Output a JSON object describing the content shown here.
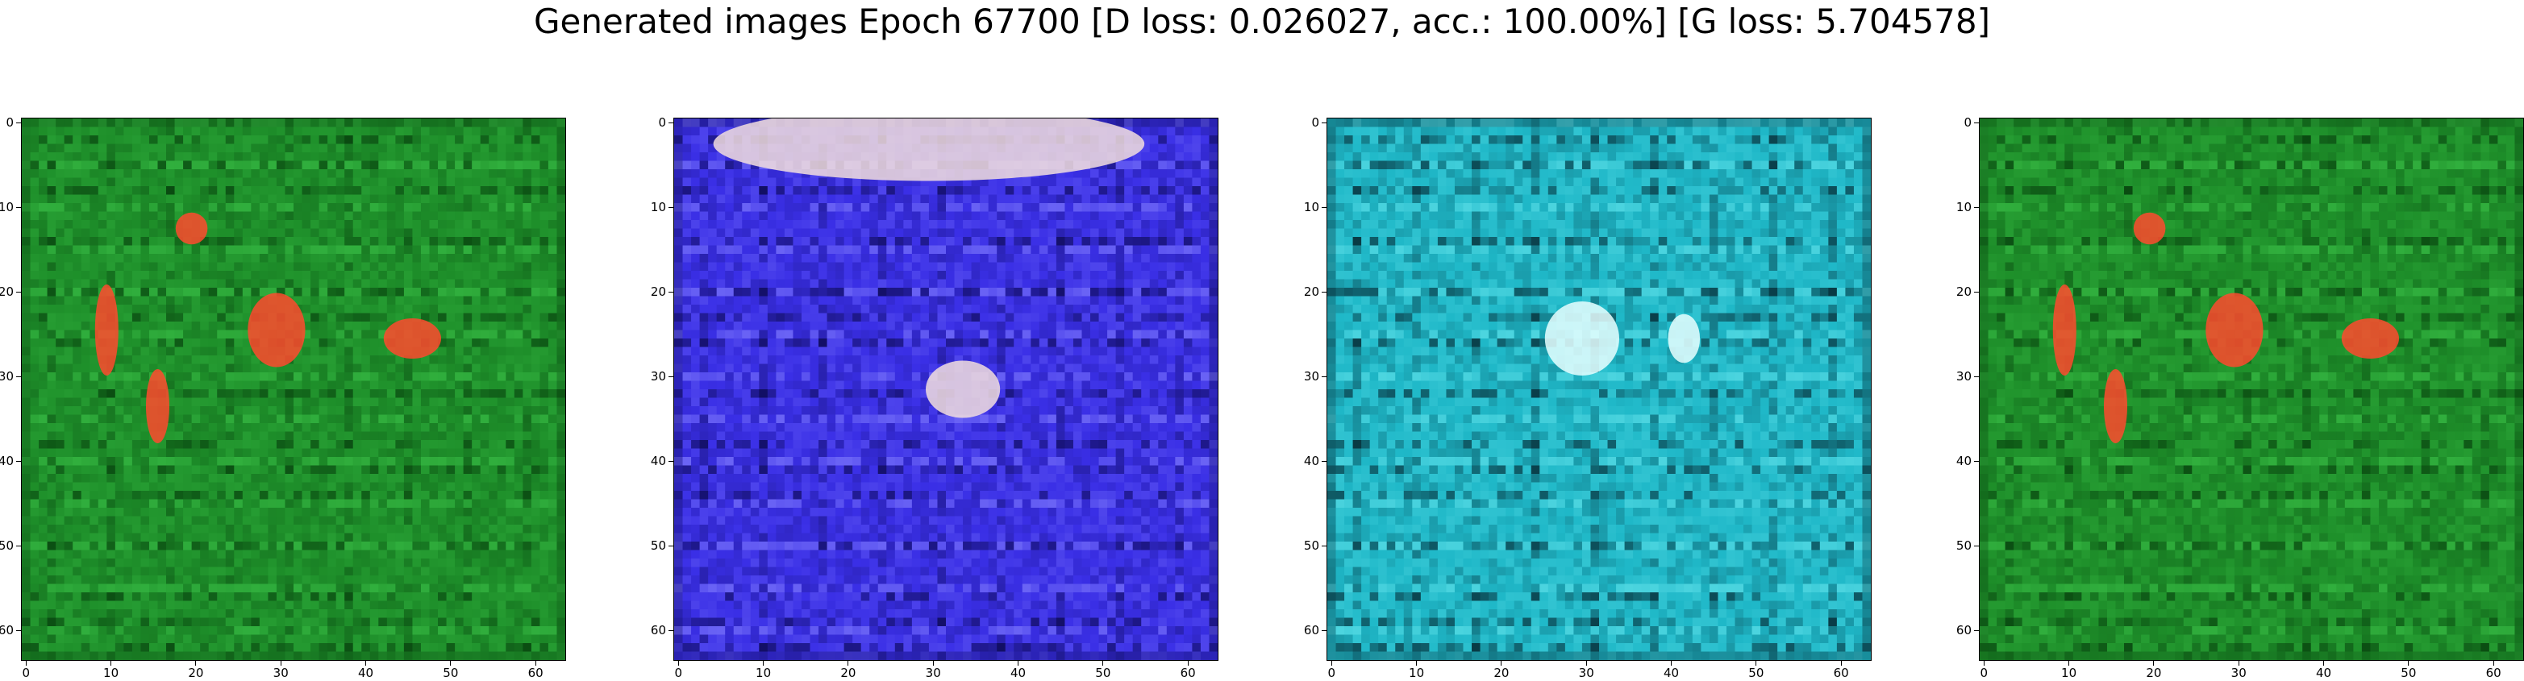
{
  "title": "Generated images Epoch 67700 [D loss: 0.026027, acc.: 100.00%] [G loss: 5.704578]",
  "chart_data": [
    {
      "type": "heatmap",
      "description_colors": {
        "base": "#1e8f2a",
        "dark": "#0b4d12",
        "light": "#3dc44a",
        "accent": "#ff4a2e"
      },
      "x_ticks": [
        "0",
        "10",
        "20",
        "30",
        "40",
        "50",
        "60"
      ],
      "y_ticks": [
        "0",
        "10",
        "20",
        "30",
        "40",
        "50",
        "60"
      ],
      "xlim": [
        -0.5,
        63.5
      ],
      "ylim": [
        63.5,
        -0.5
      ]
    },
    {
      "type": "heatmap",
      "description_colors": {
        "base": "#3a2fe6",
        "dark": "#14106a",
        "light": "#8a86ff",
        "accent": "#f2dede"
      },
      "x_ticks": [
        "0",
        "10",
        "20",
        "30",
        "40",
        "50",
        "60"
      ],
      "y_ticks": [
        "0",
        "10",
        "20",
        "30",
        "40",
        "50",
        "60"
      ],
      "xlim": [
        -0.5,
        63.5
      ],
      "ylim": [
        63.5,
        -0.5
      ]
    },
    {
      "type": "heatmap",
      "description_colors": {
        "base": "#1fb8c8",
        "dark": "#0a3f4a",
        "light": "#6ae8ef",
        "accent": "#e8ffff"
      },
      "x_ticks": [
        "0",
        "10",
        "20",
        "30",
        "40",
        "50",
        "60"
      ],
      "y_ticks": [
        "0",
        "10",
        "20",
        "30",
        "40",
        "50",
        "60"
      ],
      "xlim": [
        -0.5,
        63.5
      ],
      "ylim": [
        63.5,
        -0.5
      ]
    },
    {
      "type": "heatmap",
      "description_colors": {
        "base": "#1e8f2a",
        "dark": "#0b4d12",
        "light": "#3dc44a",
        "accent": "#ff4a2e"
      },
      "x_ticks": [
        "0",
        "10",
        "20",
        "30",
        "40",
        "50",
        "60"
      ],
      "y_ticks": [
        "0",
        "10",
        "20",
        "30",
        "40",
        "50",
        "60"
      ],
      "xlim": [
        -0.5,
        63.5
      ],
      "ylim": [
        63.5,
        -0.5
      ]
    }
  ]
}
